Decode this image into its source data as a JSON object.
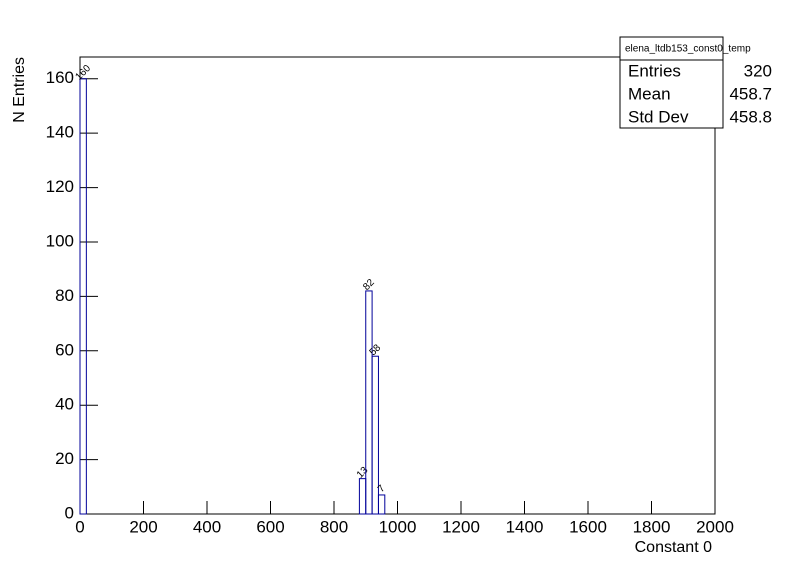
{
  "chart_data": {
    "type": "histogram",
    "x_label": "Constant 0",
    "y_label": "N Entries",
    "bins": [
      0,
      20,
      880,
      900,
      920,
      940,
      960
    ],
    "counts": [
      160,
      0,
      13,
      82,
      58,
      7
    ],
    "color": "#000099",
    "xlim": [
      0,
      2000
    ],
    "xticks": [
      0,
      200,
      400,
      600,
      800,
      1000,
      1200,
      1400,
      1600,
      1800,
      2000
    ],
    "ylim": [
      0,
      168
    ],
    "yticks": [
      0,
      20,
      40,
      60,
      80,
      100,
      120,
      140,
      160
    ],
    "stats": {
      "title": "elena_ltdb153_const0_temp",
      "rows": [
        [
          "Entries",
          "320"
        ],
        [
          "Mean",
          "458.7"
        ],
        [
          "Std Dev",
          "458.8"
        ]
      ]
    }
  }
}
